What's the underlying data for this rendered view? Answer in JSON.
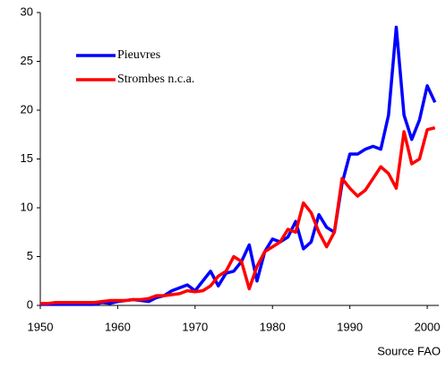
{
  "chart_data": {
    "type": "line",
    "annotation": "Source FAO",
    "x": [
      1950,
      1951,
      1952,
      1953,
      1954,
      1955,
      1956,
      1957,
      1958,
      1959,
      1960,
      1961,
      1962,
      1963,
      1964,
      1965,
      1966,
      1967,
      1968,
      1969,
      1970,
      1971,
      1972,
      1973,
      1974,
      1975,
      1976,
      1977,
      1978,
      1979,
      1980,
      1981,
      1982,
      1983,
      1984,
      1985,
      1986,
      1987,
      1988,
      1989,
      1990,
      1991,
      1992,
      1993,
      1994,
      1995,
      1996,
      1997,
      1998,
      1999,
      2000,
      2001
    ],
    "series": [
      {
        "name": "Pieuvres",
        "color": "#0000ff",
        "values": [
          0.1,
          0.1,
          0.1,
          0.1,
          0.1,
          0.1,
          0.1,
          0.1,
          0.3,
          0.2,
          0.4,
          0.5,
          0.6,
          0.5,
          0.4,
          0.8,
          1.0,
          1.5,
          1.8,
          2.1,
          1.5,
          2.5,
          3.5,
          2.0,
          3.3,
          3.5,
          4.5,
          6.2,
          2.5,
          5.5,
          6.8,
          6.5,
          7.0,
          8.6,
          5.8,
          6.5,
          9.3,
          8.0,
          7.5,
          12.5,
          15.5,
          15.5,
          16.0,
          16.3,
          16.0,
          19.5,
          28.5,
          19.5,
          17.0,
          19.0,
          22.5,
          20.8
        ]
      },
      {
        "name": "Strombes n.c.a.",
        "color": "#ff0000",
        "values": [
          0.2,
          0.2,
          0.3,
          0.3,
          0.3,
          0.3,
          0.3,
          0.3,
          0.4,
          0.5,
          0.5,
          0.5,
          0.6,
          0.6,
          0.7,
          1.0,
          1.0,
          1.1,
          1.2,
          1.5,
          1.4,
          1.5,
          2.0,
          3.0,
          3.5,
          5.0,
          4.5,
          1.7,
          4.0,
          5.5,
          6.0,
          6.5,
          7.8,
          7.5,
          10.5,
          9.5,
          7.5,
          6.0,
          7.5,
          13.0,
          12.0,
          11.2,
          11.8,
          13.0,
          14.2,
          13.5,
          12.0,
          17.8,
          14.5,
          15.0,
          18.0,
          18.2
        ]
      }
    ],
    "xlim": [
      1950,
      2001.5
    ],
    "xticks": [
      1950,
      1960,
      1970,
      1980,
      1990,
      2000
    ],
    "ylim": [
      0,
      30
    ],
    "yticks": [
      0,
      5,
      10,
      15,
      20,
      25,
      30
    ],
    "legend": "upper left"
  }
}
